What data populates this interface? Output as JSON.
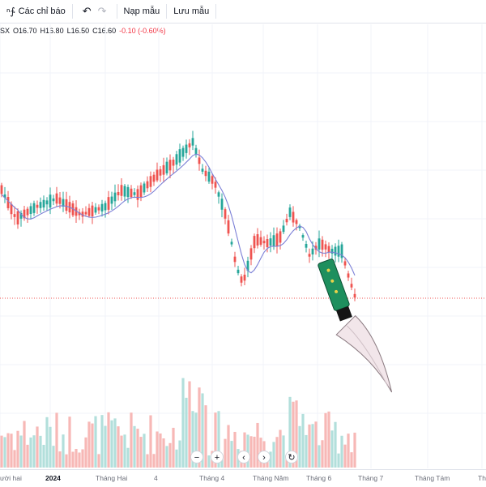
{
  "toolbar": {
    "indicators_label": "Các chỉ báo",
    "load_template_label": "Nạp mẫu",
    "save_template_label": "Lưu mẫu"
  },
  "legend": {
    "symbol": "SX",
    "open": "O16.70",
    "high": "H16.80",
    "low": "L16.50",
    "close": "C16.60",
    "change": "-0.10 (-0.60%)"
  },
  "xaxis": {
    "labels": [
      "ười hai",
      "2024",
      "Tháng Hai",
      "4",
      "Tháng 4",
      "Tháng Năm",
      "Tháng 6",
      "Tháng 7",
      "Tháng Tám",
      "Th"
    ]
  },
  "nav": {
    "zoom_out": "−",
    "zoom_in": "+",
    "scroll_left": "‹",
    "scroll_right": "›",
    "reset": "↻"
  },
  "colors": {
    "up": "#26a69a",
    "down": "#ef5350",
    "ma_line": "#7b7fd6",
    "price_line": "#ef5350",
    "grid": "#f0f3fa"
  },
  "icons": {
    "indicators": "indicators-icon",
    "undo": "undo-icon",
    "redo": "redo-icon",
    "overlay": "kitchen-knife-icon"
  }
}
